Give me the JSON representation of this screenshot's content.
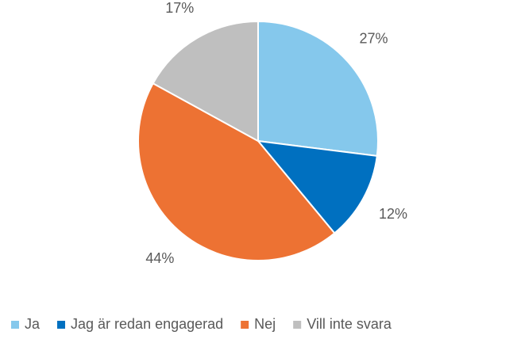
{
  "chart_data": {
    "type": "pie",
    "categories": [
      "Ja",
      "Jag är redan engagerad",
      "Nej",
      "Vill inte svara"
    ],
    "values": [
      27,
      12,
      44,
      17
    ],
    "value_labels": [
      "27%",
      "12%",
      "44%",
      "17%"
    ],
    "colors": [
      "#85c8ec",
      "#0070c0",
      "#ed7233",
      "#bfbfbf"
    ],
    "legend": "bottom"
  }
}
